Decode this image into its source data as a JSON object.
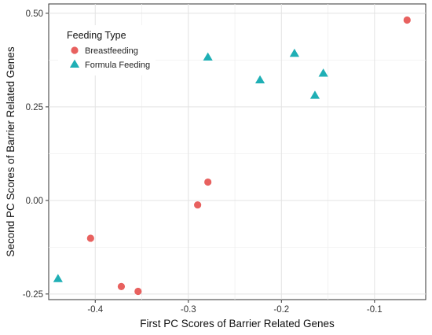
{
  "chart_data": {
    "type": "scatter",
    "title": "",
    "xlabel": "First PC Scores of Barrier Related Genes",
    "ylabel": "Second PC Scores of Barrier Related Genes",
    "xlim": [
      -0.45,
      -0.045
    ],
    "ylim": [
      -0.265,
      0.525
    ],
    "x_ticks": [
      -0.4,
      -0.3,
      -0.2,
      -0.1
    ],
    "x_tick_labels": [
      "-0.4",
      "-0.3",
      "-0.2",
      "-0.1"
    ],
    "y_ticks": [
      -0.25,
      0,
      0.25,
      0.5
    ],
    "y_tick_labels": [
      "-0.25",
      "0.00",
      "0.25",
      "0.50"
    ],
    "grid": true,
    "legend": {
      "title": "Feeding Type",
      "placement": "top-left"
    },
    "series": [
      {
        "name": "Breastfeeding",
        "marker": "circle",
        "color": "#E8615F",
        "points": [
          {
            "x": -0.065,
            "y": 0.482
          },
          {
            "x": -0.279,
            "y": 0.049
          },
          {
            "x": -0.29,
            "y": -0.012
          },
          {
            "x": -0.405,
            "y": -0.101
          },
          {
            "x": -0.372,
            "y": -0.23
          },
          {
            "x": -0.354,
            "y": -0.243
          }
        ]
      },
      {
        "name": "Formula Feeding",
        "marker": "triangle",
        "color": "#1FAFB5",
        "points": [
          {
            "x": -0.279,
            "y": 0.382
          },
          {
            "x": -0.186,
            "y": 0.392
          },
          {
            "x": -0.223,
            "y": 0.321
          },
          {
            "x": -0.155,
            "y": 0.339
          },
          {
            "x": -0.164,
            "y": 0.28
          },
          {
            "x": -0.44,
            "y": -0.21
          }
        ]
      }
    ]
  }
}
